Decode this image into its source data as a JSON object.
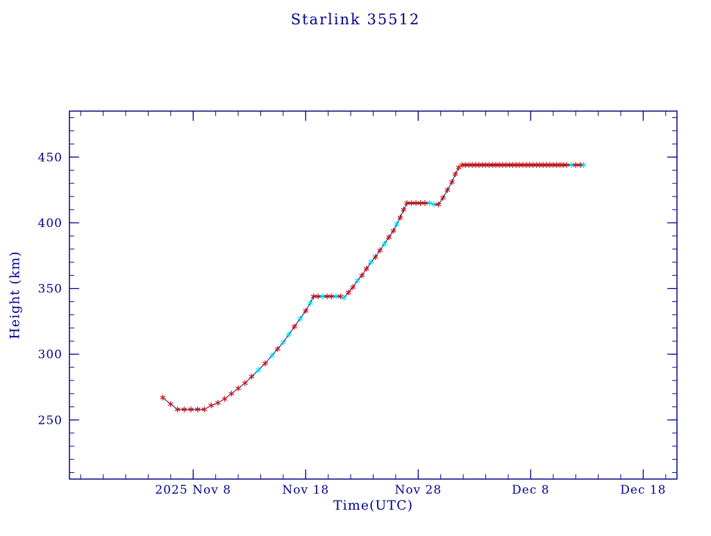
{
  "colors": {
    "background": "#ffffff",
    "axis": "#000090",
    "line": "#000090",
    "marker_red": "#cc1111",
    "marker_cyan": "#00dde8"
  },
  "chart_data": {
    "type": "line",
    "title": "Starlink 35512",
    "xlabel": "Time(UTC)",
    "ylabel": "Height (km)",
    "x_axis_note": "day number relative to 2025 Nov 1 (Dec 8 = day 38)",
    "x_domain_days": [
      -3,
      51
    ],
    "ylim": [
      205,
      485
    ],
    "y_ticks": [
      250,
      300,
      350,
      400,
      450
    ],
    "y_minor_step": 10,
    "x_ticks": [
      {
        "day": 8,
        "label": "2025 Nov 8"
      },
      {
        "day": 18,
        "label": "Nov 18"
      },
      {
        "day": 28,
        "label": "Nov 28"
      },
      {
        "day": 38,
        "label": "Dec 8"
      },
      {
        "day": 48,
        "label": "Dec 18"
      }
    ],
    "x_minor_step_days": 2,
    "legend": "none",
    "grid": false,
    "marker_style": "asterisk",
    "points": [
      [
        5.3,
        267,
        "r"
      ],
      [
        6.0,
        262,
        "r"
      ],
      [
        6.6,
        258,
        "r"
      ],
      [
        7.2,
        258,
        "r"
      ],
      [
        7.8,
        258,
        "r"
      ],
      [
        8.4,
        258,
        "r"
      ],
      [
        9.0,
        258,
        "r"
      ],
      [
        9.6,
        261,
        "r"
      ],
      [
        10.2,
        263,
        "r"
      ],
      [
        10.8,
        266,
        "r"
      ],
      [
        11.4,
        270,
        "r"
      ],
      [
        12.0,
        274,
        "r"
      ],
      [
        12.6,
        278,
        "r"
      ],
      [
        13.2,
        283,
        "r"
      ],
      [
        13.8,
        288,
        "c"
      ],
      [
        14.4,
        293,
        "r"
      ],
      [
        15.0,
        299,
        "c"
      ],
      [
        15.5,
        304,
        "r"
      ],
      [
        16.0,
        309,
        "c"
      ],
      [
        16.5,
        315,
        "c"
      ],
      [
        17.0,
        321,
        "r"
      ],
      [
        17.5,
        327,
        "c"
      ],
      [
        18.0,
        333,
        "r"
      ],
      [
        18.4,
        339,
        "c"
      ],
      [
        18.7,
        344,
        "r"
      ],
      [
        19.1,
        344,
        "r"
      ],
      [
        19.5,
        344,
        "c"
      ],
      [
        19.9,
        344,
        "r"
      ],
      [
        20.3,
        344,
        "r"
      ],
      [
        20.7,
        344,
        "c"
      ],
      [
        21.1,
        344,
        "r"
      ],
      [
        21.4,
        343,
        "c"
      ],
      [
        21.8,
        347,
        "r"
      ],
      [
        22.2,
        351,
        "r"
      ],
      [
        22.6,
        356,
        "c"
      ],
      [
        23.0,
        360,
        "r"
      ],
      [
        23.4,
        365,
        "r"
      ],
      [
        23.8,
        370,
        "c"
      ],
      [
        24.2,
        374,
        "r"
      ],
      [
        24.6,
        379,
        "r"
      ],
      [
        25.0,
        384,
        "c"
      ],
      [
        25.4,
        389,
        "r"
      ],
      [
        25.8,
        394,
        "r"
      ],
      [
        26.1,
        399,
        "c"
      ],
      [
        26.4,
        404,
        "r"
      ],
      [
        26.7,
        410,
        "r"
      ],
      [
        27.0,
        415,
        "r"
      ],
      [
        27.4,
        415,
        "r"
      ],
      [
        27.8,
        415,
        "r"
      ],
      [
        28.2,
        415,
        "r"
      ],
      [
        28.6,
        415,
        "r"
      ],
      [
        29.0,
        415,
        "c"
      ],
      [
        29.4,
        414,
        "c"
      ],
      [
        29.8,
        414,
        "r"
      ],
      [
        30.2,
        419,
        "r"
      ],
      [
        30.6,
        425,
        "r"
      ],
      [
        31.0,
        431,
        "r"
      ],
      [
        31.3,
        437,
        "r"
      ],
      [
        31.6,
        442,
        "r"
      ],
      [
        31.9,
        444,
        "r"
      ],
      [
        32.2,
        444,
        "r"
      ],
      [
        32.5,
        444,
        "r"
      ],
      [
        32.8,
        444,
        "r"
      ],
      [
        33.1,
        444,
        "r"
      ],
      [
        33.4,
        444,
        "r"
      ],
      [
        33.7,
        444,
        "r"
      ],
      [
        34.0,
        444,
        "r"
      ],
      [
        34.3,
        444,
        "r"
      ],
      [
        34.6,
        444,
        "r"
      ],
      [
        34.9,
        444,
        "r"
      ],
      [
        35.2,
        444,
        "r"
      ],
      [
        35.5,
        444,
        "r"
      ],
      [
        35.8,
        444,
        "r"
      ],
      [
        36.1,
        444,
        "r"
      ],
      [
        36.4,
        444,
        "r"
      ],
      [
        36.7,
        444,
        "r"
      ],
      [
        37.0,
        444,
        "r"
      ],
      [
        37.3,
        444,
        "r"
      ],
      [
        37.6,
        444,
        "r"
      ],
      [
        37.9,
        444,
        "r"
      ],
      [
        38.2,
        444,
        "r"
      ],
      [
        38.5,
        444,
        "r"
      ],
      [
        38.8,
        444,
        "r"
      ],
      [
        39.1,
        444,
        "r"
      ],
      [
        39.4,
        444,
        "r"
      ],
      [
        39.7,
        444,
        "r"
      ],
      [
        40.0,
        444,
        "r"
      ],
      [
        40.3,
        444,
        "r"
      ],
      [
        40.6,
        444,
        "r"
      ],
      [
        40.9,
        444,
        "r"
      ],
      [
        41.2,
        444,
        "r"
      ],
      [
        41.6,
        444,
        "c"
      ],
      [
        42.0,
        444,
        "r"
      ],
      [
        42.4,
        444,
        "r"
      ],
      [
        42.7,
        444,
        "c"
      ]
    ]
  }
}
